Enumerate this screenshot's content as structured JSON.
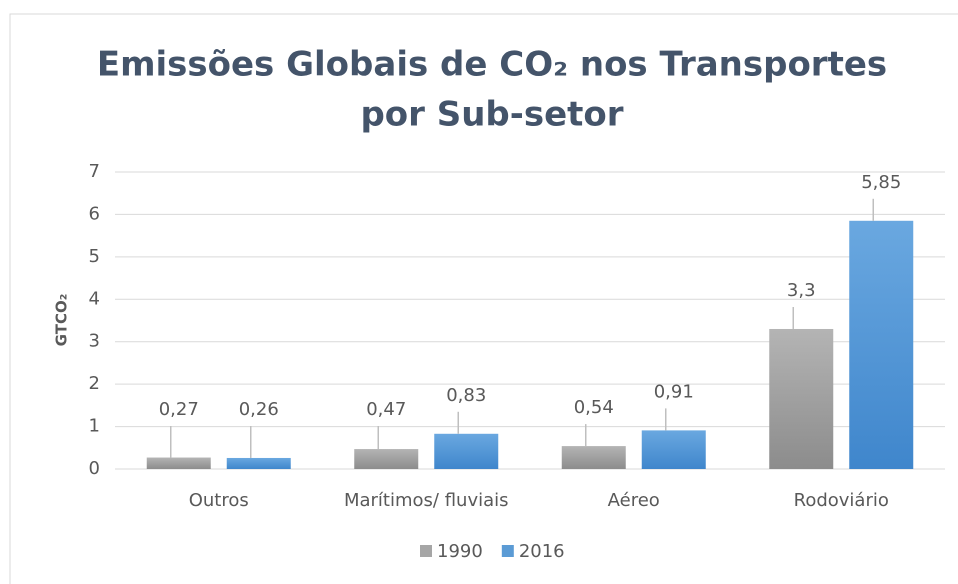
{
  "chart_data": {
    "type": "bar",
    "title": [
      "Emissões Globais de CO₂ nos Transportes",
      "por Sub-setor"
    ],
    "y_label": "GTCO₂",
    "categories": [
      "Outros",
      "Marítimos/ fluviais",
      "Aéreo",
      "Rodoviário"
    ],
    "series": [
      {
        "name": "1990",
        "color": "#a6a6a6",
        "values": [
          0.27,
          0.47,
          0.54,
          3.3
        ],
        "value_labels": [
          "0,27",
          "0,47",
          "0,54",
          "3,3"
        ]
      },
      {
        "name": "2016",
        "color": "#5b9bd5",
        "values": [
          0.26,
          0.83,
          0.91,
          5.85
        ],
        "value_labels": [
          "0,26",
          "0,83",
          "0,91",
          "5,85"
        ]
      }
    ],
    "ylim": [
      0,
      7
    ],
    "yticks": [
      0,
      1,
      2,
      3,
      4,
      5,
      6,
      7
    ],
    "grid": true,
    "legend": "bottom"
  }
}
